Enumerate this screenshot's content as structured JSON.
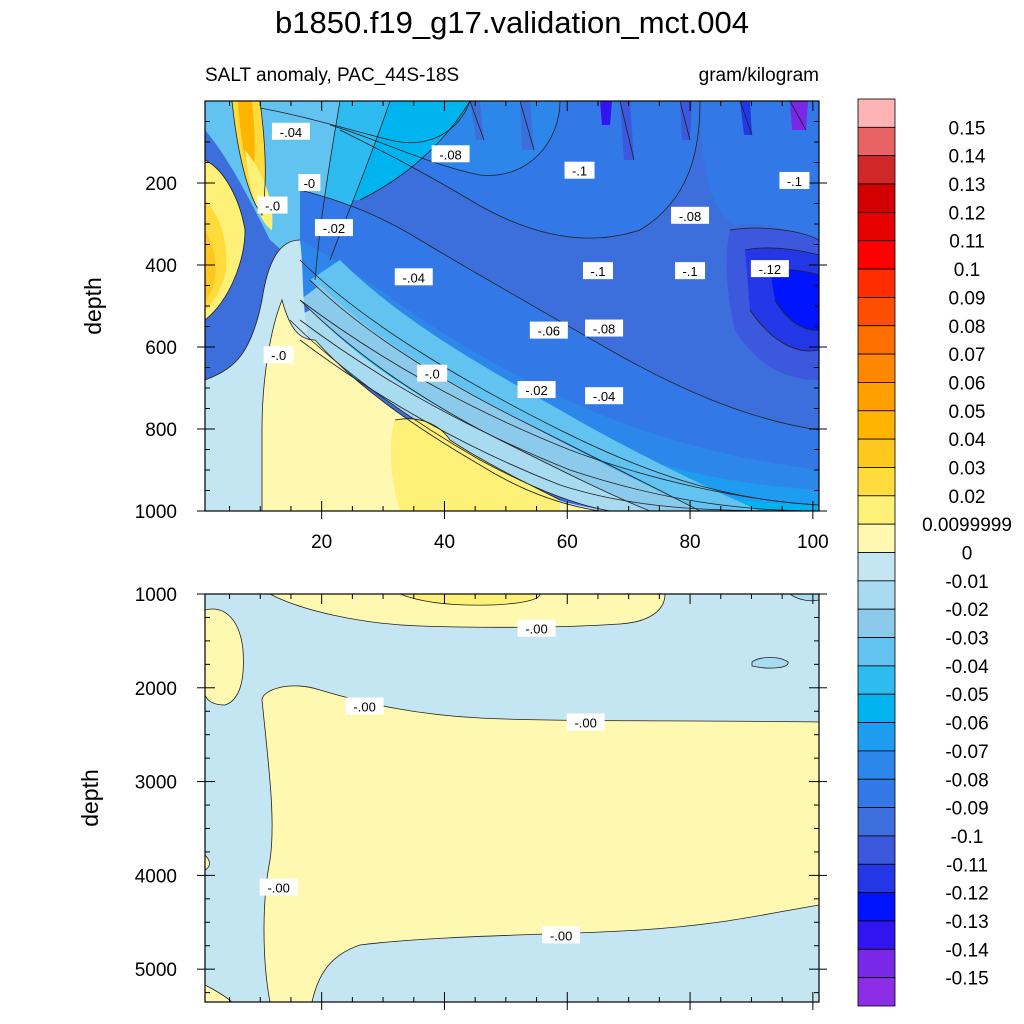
{
  "figure": {
    "title": "b1850.f19_g17.validation_mct.004",
    "subtitle_left": "SALT anomaly, PAC_44S-18S",
    "subtitle_right": "gram/kilogram"
  },
  "colors": {
    "positive_light": "#fff8b0",
    "zero_band_negative": "#c4e6f2",
    "contour_line": "#222222"
  },
  "chart_data": [
    {
      "type": "heatmap",
      "name": "upper-panel",
      "ylabel": "depth",
      "xlabel": "",
      "xlim": [
        1,
        101
      ],
      "ylim": [
        1000,
        0
      ],
      "x_ticks": [
        20,
        40,
        60,
        80,
        100
      ],
      "y_ticks": [
        200,
        400,
        600,
        800,
        1000
      ],
      "contour_labels": [
        {
          "text": "-.04",
          "x": 15,
          "y": 75
        },
        {
          "text": "-.08",
          "x": 41,
          "y": 130
        },
        {
          "text": "-.1",
          "x": 62,
          "y": 170
        },
        {
          "text": "-.1",
          "x": 97,
          "y": 195
        },
        {
          "text": "-0",
          "x": 18,
          "y": 200
        },
        {
          "text": "-.0",
          "x": 12,
          "y": 255
        },
        {
          "text": "-.08",
          "x": 80,
          "y": 280
        },
        {
          "text": "-.02",
          "x": 22,
          "y": 310
        },
        {
          "text": "-.1",
          "x": 65,
          "y": 415
        },
        {
          "text": "-.1",
          "x": 80,
          "y": 415
        },
        {
          "text": "-.12",
          "x": 93,
          "y": 410
        },
        {
          "text": "-.04",
          "x": 35,
          "y": 430
        },
        {
          "text": "-.06",
          "x": 57,
          "y": 560
        },
        {
          "text": "-.08",
          "x": 66,
          "y": 555
        },
        {
          "text": "-.0",
          "x": 13,
          "y": 620
        },
        {
          "text": "-.0",
          "x": 38,
          "y": 665
        },
        {
          "text": "-.02",
          "x": 55,
          "y": 705
        },
        {
          "text": "-.04",
          "x": 66,
          "y": 720
        }
      ]
    },
    {
      "type": "heatmap",
      "name": "lower-panel",
      "ylabel": "depth",
      "xlabel": "",
      "xlim": [
        1,
        101
      ],
      "ylim": [
        5350,
        1000
      ],
      "x_ticks": [
        20,
        40,
        60,
        80,
        100
      ],
      "y_ticks": [
        1000,
        2000,
        3000,
        4000,
        5000
      ],
      "contour_labels": [
        {
          "text": "-.00",
          "x": 55,
          "y": 1370
        },
        {
          "text": "-.00",
          "x": 27,
          "y": 2200
        },
        {
          "text": "-.00",
          "x": 63,
          "y": 2370
        },
        {
          "text": "-.00",
          "x": 13,
          "y": 4130
        },
        {
          "text": "-.00",
          "x": 59,
          "y": 4640
        }
      ]
    }
  ],
  "colorbar": {
    "levels": [
      {
        "label": "0.15",
        "color": "#ffb4b4"
      },
      {
        "label": "0.14",
        "color": "#e86464"
      },
      {
        "label": "0.13",
        "color": "#d02828"
      },
      {
        "label": "0.12",
        "color": "#d20000"
      },
      {
        "label": "0.11",
        "color": "#e60000"
      },
      {
        "label": "0.1",
        "color": "#ff0000"
      },
      {
        "label": "0.09",
        "color": "#ff2d00"
      },
      {
        "label": "0.08",
        "color": "#ff4e00"
      },
      {
        "label": "0.07",
        "color": "#ff6f00"
      },
      {
        "label": "0.06",
        "color": "#ff8800"
      },
      {
        "label": "0.05",
        "color": "#ffa000"
      },
      {
        "label": "0.04",
        "color": "#ffb400"
      },
      {
        "label": "0.03",
        "color": "#ffc81e"
      },
      {
        "label": "0.02",
        "color": "#ffdc3c"
      },
      {
        "label": "0.0099999",
        "color": "#fff078"
      },
      {
        "label": "0",
        "color": "#fff8b0"
      },
      {
        "label": "-0.01",
        "color": "#c4e6f2"
      },
      {
        "label": "-0.02",
        "color": "#a8daf0"
      },
      {
        "label": "-0.03",
        "color": "#8ccaeb"
      },
      {
        "label": "-0.04",
        "color": "#62c2f0"
      },
      {
        "label": "-0.05",
        "color": "#2ebcf0"
      },
      {
        "label": "-0.06",
        "color": "#00b4f0"
      },
      {
        "label": "-0.07",
        "color": "#1e9cf0"
      },
      {
        "label": "-0.08",
        "color": "#2d87ea"
      },
      {
        "label": "-0.09",
        "color": "#3278e6"
      },
      {
        "label": "-0.1",
        "color": "#3c6edc"
      },
      {
        "label": "-0.11",
        "color": "#3c58dc"
      },
      {
        "label": "-0.12",
        "color": "#2337e6"
      },
      {
        "label": "-0.13",
        "color": "#0014ff"
      },
      {
        "label": "-0.14",
        "color": "#3214f0"
      },
      {
        "label": "-0.15",
        "color": "#7828e6"
      }
    ],
    "boxes": [
      "#ffb4b4",
      "#e86464",
      "#d02828",
      "#d20000",
      "#e60000",
      "#ff0000",
      "#ff2d00",
      "#ff4e00",
      "#ff6f00",
      "#ff8800",
      "#ffa000",
      "#ffb400",
      "#ffc81e",
      "#ffdc3c",
      "#fff078",
      "#fff8b0",
      "#c4e6f2",
      "#a8daf0",
      "#8ccaeb",
      "#62c2f0",
      "#2ebcf0",
      "#00b4f0",
      "#1e9cf0",
      "#2d87ea",
      "#3278e6",
      "#3c6edc",
      "#3c58dc",
      "#2337e6",
      "#0014ff",
      "#3214f0",
      "#7828e6",
      "#8c2ee6"
    ]
  }
}
